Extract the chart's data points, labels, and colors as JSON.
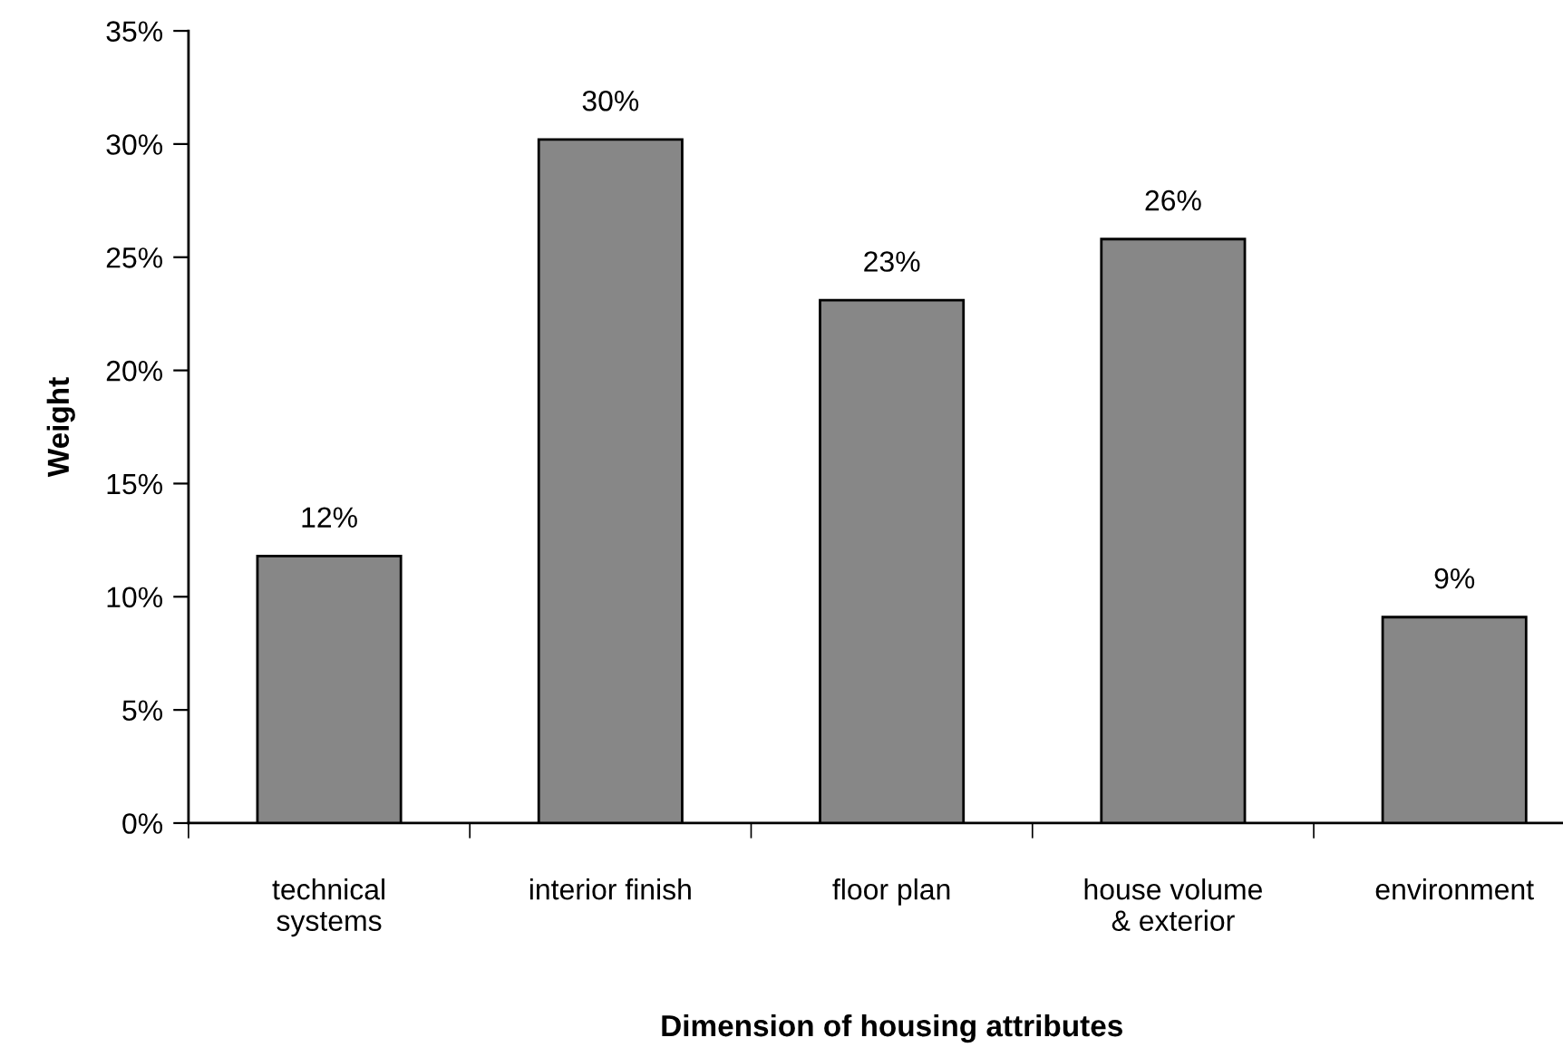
{
  "chart_data": {
    "type": "bar",
    "xlabel": "Dimension of housing attributes",
    "ylabel": "Weight",
    "categories": [
      "technical\nsystems",
      "interior finish",
      "floor plan",
      "house volume\n& exterior",
      "environment"
    ],
    "values": [
      11.8,
      30.2,
      23.1,
      25.8,
      9.1
    ],
    "value_labels": [
      "12%",
      "30%",
      "23%",
      "26%",
      "9%"
    ],
    "color": "#878787",
    "ylim": [
      0,
      35
    ],
    "yticks": [
      {
        "value": 0,
        "label": "0%"
      },
      {
        "value": 5,
        "label": "5%"
      },
      {
        "value": 10,
        "label": "10%"
      },
      {
        "value": 15,
        "label": "15%"
      },
      {
        "value": 20,
        "label": "20%"
      },
      {
        "value": 25,
        "label": "25%"
      },
      {
        "value": 30,
        "label": "30%"
      },
      {
        "value": 35,
        "label": "35%"
      }
    ],
    "grid": false
  }
}
